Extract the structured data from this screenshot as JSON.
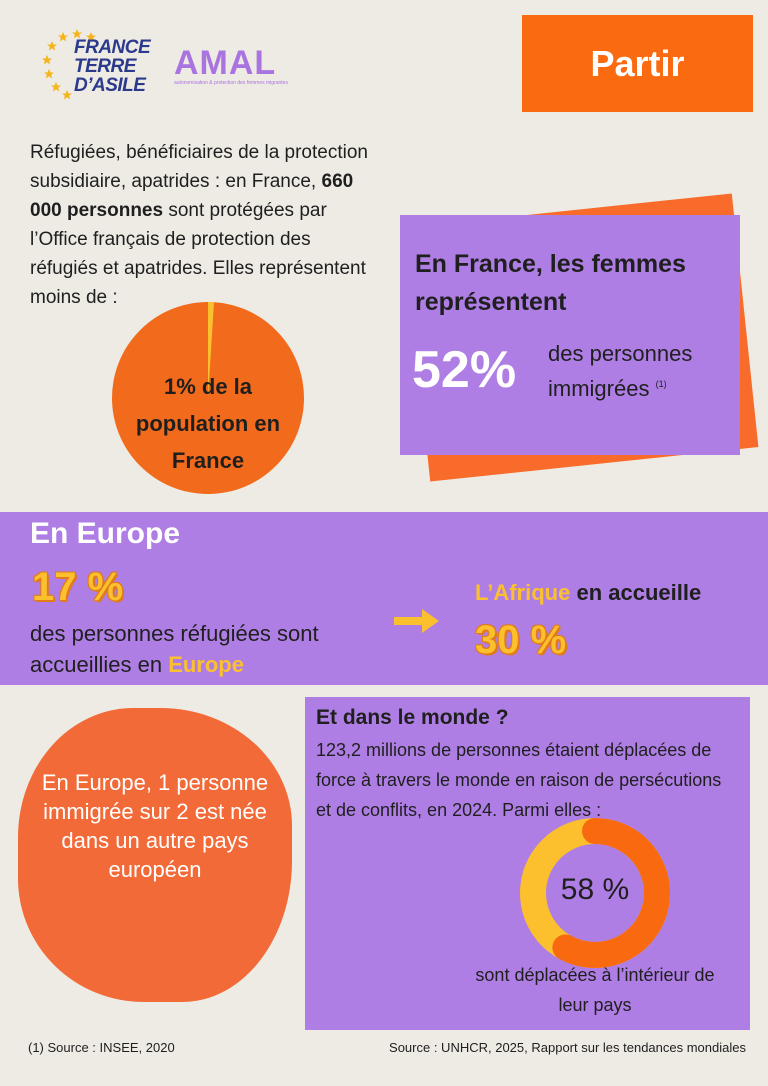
{
  "header": {
    "logo_lines": [
      "FRANCE",
      "TERRE",
      "D’ASILE"
    ],
    "amal": "AMAL",
    "amal_tagline": "autonomisation & protection des femmes migrantes",
    "tag": "Partir"
  },
  "france": {
    "intro": [
      "Réfugiées, bénéficiaires de la protection subsidiaire, apatrides : en France, ",
      "660 000 personnes",
      " sont protégées par l’Office français de protection des réfugiés et apatrides. Elles représentent moins de :"
    ],
    "pie": {
      "value": 1,
      "label": "1% de la population en France"
    }
  },
  "women": {
    "title": "En France, les femmes représentent",
    "figure": "52%",
    "text": "des personnes immigrées",
    "note": "(1)"
  },
  "europe": {
    "title": "En Europe",
    "figure": "17 %",
    "text": "des personnes réfugiées sont accueillies en ",
    "highlight": "Europe",
    "africa": "L’Afrique",
    "africa_text": " en accueille",
    "africa_figure": "30 %"
  },
  "europe_fact": "En Europe, 1 personne immigrée sur 2 est née dans un autre pays européen",
  "world": {
    "title": "Et dans le monde ?",
    "text": "123,2 millions de personnes étaient déplacées de force à travers le monde en raison de persécutions et de conflits, en 2024. Parmi elles :",
    "donut": {
      "value": 58,
      "label": "58 %"
    },
    "caption": "sont déplacées à l’intérieur de leur pays"
  },
  "footer": {
    "left": "(1) Source : INSEE, 2020",
    "right": "Source : UNHCR, 2025, Rapport sur les tendances mondiales"
  }
}
